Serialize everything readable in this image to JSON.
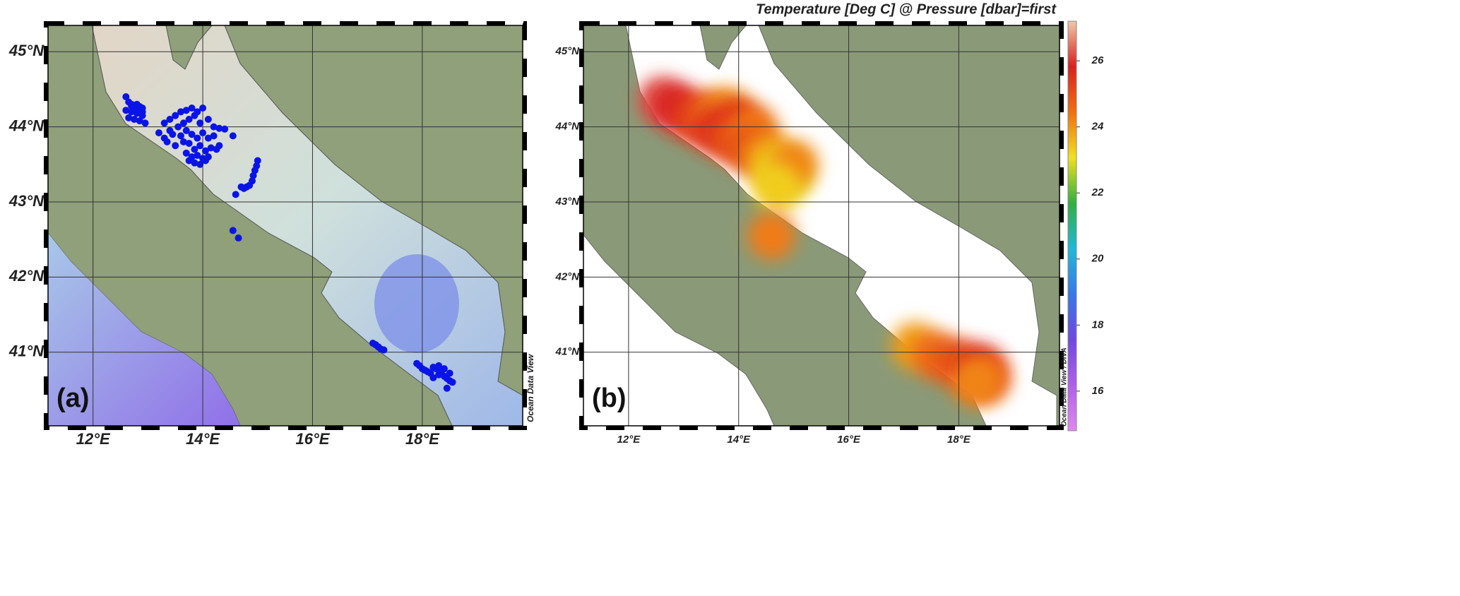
{
  "panels": [
    {
      "type": "map",
      "label": "(a)",
      "credit": "Ocean Data View",
      "xlim": [
        11.18,
        19.83
      ],
      "ylim": [
        40.02,
        45.35
      ],
      "xticks": [
        {
          "value": 12,
          "label": "12°E"
        },
        {
          "value": 14,
          "label": "14°E"
        },
        {
          "value": 16,
          "label": "16°E"
        },
        {
          "value": 18,
          "label": "18°E"
        }
      ],
      "yticks": [
        {
          "value": 41,
          "label": "41°N"
        },
        {
          "value": 42,
          "label": "42°N"
        },
        {
          "value": 43,
          "label": "43°N"
        },
        {
          "value": 44,
          "label": "44°N"
        },
        {
          "value": 45,
          "label": "45°N"
        }
      ],
      "grid": true,
      "stations": {
        "color": "#0a14e6",
        "lon": [
          12.6,
          12.65,
          12.7,
          12.75,
          12.8,
          12.85,
          12.9,
          12.6,
          12.7,
          12.8,
          12.9,
          12.65,
          12.75,
          12.85,
          12.95,
          12.7,
          12.8,
          12.9,
          13.3,
          13.4,
          13.5,
          13.6,
          13.7,
          13.8,
          13.9,
          14.0,
          13.4,
          13.55,
          13.65,
          13.75,
          13.85,
          13.95,
          14.1,
          14.2,
          14.3,
          14.4,
          14.55,
          13.3,
          13.45,
          13.6,
          13.7,
          13.8,
          13.9,
          14.0,
          14.1,
          14.2,
          13.5,
          13.65,
          13.75,
          13.85,
          13.95,
          14.05,
          14.15,
          14.25,
          13.7,
          13.8,
          13.9,
          14.0,
          14.1,
          13.75,
          13.85,
          13.95,
          14.05,
          13.2,
          13.35,
          14.3,
          15.0,
          14.98,
          14.95,
          14.92,
          14.9,
          14.85,
          14.8,
          14.75,
          14.7,
          14.6,
          14.55,
          14.65,
          17.1,
          17.15,
          17.2,
          17.25,
          17.3,
          17.9,
          17.95,
          18.0,
          18.05,
          18.1,
          18.15,
          18.2,
          18.25,
          18.3,
          18.35,
          18.4,
          18.45,
          18.5,
          18.55,
          18.3,
          18.4,
          18.5,
          18.2,
          18.45
        ],
        "lat": [
          44.4,
          44.33,
          44.3,
          44.28,
          44.3,
          44.27,
          44.25,
          44.22,
          44.2,
          44.18,
          44.15,
          44.12,
          44.1,
          44.08,
          44.05,
          44.28,
          44.22,
          44.2,
          44.05,
          44.1,
          44.15,
          44.2,
          44.22,
          44.25,
          44.2,
          44.25,
          43.95,
          44.0,
          44.05,
          44.1,
          44.15,
          44.05,
          44.1,
          44.0,
          43.98,
          43.97,
          43.88,
          43.85,
          43.9,
          43.88,
          43.95,
          43.9,
          43.85,
          43.92,
          43.85,
          43.88,
          43.75,
          43.8,
          43.78,
          43.7,
          43.75,
          43.68,
          43.72,
          43.7,
          43.65,
          43.6,
          43.62,
          43.58,
          43.6,
          43.55,
          43.52,
          43.5,
          43.55,
          43.92,
          43.8,
          43.75,
          43.55,
          43.48,
          43.42,
          43.35,
          43.28,
          43.22,
          43.2,
          43.18,
          43.2,
          43.1,
          42.62,
          42.52,
          41.12,
          41.1,
          41.07,
          41.04,
          41.03,
          40.85,
          40.82,
          40.78,
          40.76,
          40.74,
          40.72,
          40.8,
          40.78,
          40.7,
          40.75,
          40.68,
          40.65,
          40.62,
          40.6,
          40.82,
          40.78,
          40.72,
          40.66,
          40.52
        ]
      }
    },
    {
      "type": "field",
      "label": "(b)",
      "credit": "Ocean Data View / DIVA",
      "title": "Temperature [Deg C] @ Pressure [dbar]=first",
      "xlim": [
        11.18,
        19.83
      ],
      "ylim": [
        40.02,
        45.35
      ],
      "xticks": [
        {
          "value": 12,
          "label": "12°E"
        },
        {
          "value": 14,
          "label": "14°E"
        },
        {
          "value": 16,
          "label": "16°E"
        },
        {
          "value": 18,
          "label": "18°E"
        }
      ],
      "yticks": [
        {
          "value": 41,
          "label": "41°N"
        },
        {
          "value": 42,
          "label": "42°N"
        },
        {
          "value": 43,
          "label": "43°N"
        },
        {
          "value": 44,
          "label": "44°N"
        },
        {
          "value": 45,
          "label": "45°N"
        }
      ],
      "grid": true,
      "field": {
        "lon": [
          12.6,
          12.9,
          13.2,
          13.5,
          13.8,
          14.0,
          13.6,
          13.9,
          14.3,
          14.2,
          14.5,
          14.7,
          14.9,
          15.0,
          14.7,
          14.6,
          17.2,
          17.6,
          18.0,
          18.4,
          18.5,
          18.3
        ],
        "lat": [
          44.35,
          44.25,
          44.1,
          44.15,
          44.2,
          44.05,
          43.95,
          43.85,
          43.95,
          43.7,
          43.6,
          43.45,
          43.35,
          43.5,
          43.2,
          42.55,
          41.08,
          40.95,
          40.85,
          40.78,
          40.65,
          40.6
        ],
        "values": [
          26.2,
          25.8,
          25.3,
          24.8,
          24.0,
          25.5,
          25.6,
          25.0,
          24.3,
          25.0,
          24.0,
          23.4,
          23.0,
          24.2,
          23.3,
          24.3,
          23.9,
          24.6,
          25.0,
          25.8,
          24.6,
          24.2
        ]
      },
      "colorbar": {
        "lim": [
          14.8,
          27.2
        ],
        "ticks": [
          16,
          18,
          20,
          22,
          24,
          26
        ],
        "colormap": [
          "#e088f0",
          "#b060e8",
          "#7048e0",
          "#3878e8",
          "#20b8d8",
          "#30b040",
          "#f0e020",
          "#f07010",
          "#d82020",
          "#f0c8a8"
        ]
      }
    }
  ]
}
